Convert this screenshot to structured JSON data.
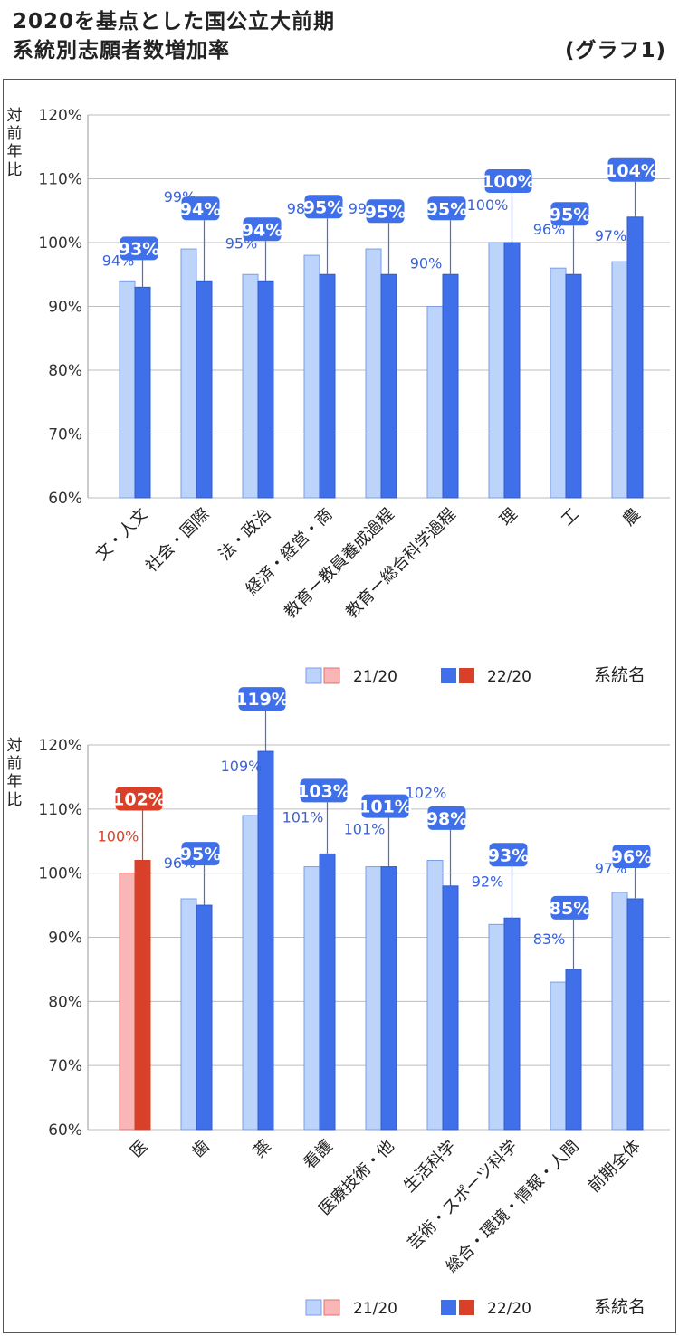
{
  "header": {
    "title_line1": "2020を基点とした国公立大前期",
    "title_line2": "系統別志願者数増加率",
    "graph_label": "(グラフ1)"
  },
  "colors": {
    "light_blue": "#bcd3fa",
    "light_blue_stroke": "#7a9ee8",
    "blue": "#3f6fe9",
    "light_red": "#f8b6b6",
    "light_red_stroke": "#e07070",
    "red": "#d9402a",
    "label_blue": "#3a63d8",
    "label_red": "#d9402a",
    "grid": "#bdbdbd"
  },
  "chart_data": [
    {
      "type": "bar",
      "ylabel": "対前年比",
      "xlabel": "系統名",
      "ylim": [
        60,
        120
      ],
      "yticks": [
        "60%",
        "70%",
        "80%",
        "90%",
        "100%",
        "110%",
        "120%"
      ],
      "categories": [
        "文・人文",
        "社会・国際",
        "法・政治",
        "経済・経営・商",
        "教育ー教員養成過程",
        "教育ー総合科学過程",
        "理",
        "工",
        "農"
      ],
      "series": [
        {
          "name": "21/20",
          "values": [
            94,
            99,
            95,
            98,
            99,
            90,
            100,
            96,
            97
          ],
          "labels": [
            "94%",
            "99%",
            "95%",
            "98%",
            "99%",
            "90%",
            "100%",
            "96%",
            "97%"
          ]
        },
        {
          "name": "22/20",
          "values": [
            93,
            94,
            94,
            95,
            95,
            95,
            100,
            95,
            104
          ],
          "labels": [
            "93%",
            "94%",
            "94%",
            "95%",
            "95%",
            "95%",
            "100%",
            "95%",
            "104%"
          ]
        }
      ],
      "highlight_index": -1,
      "legend": [
        "21/20",
        "22/20"
      ]
    },
    {
      "type": "bar",
      "ylabel": "対前年比",
      "xlabel": "系統名",
      "ylim": [
        60,
        120
      ],
      "yticks": [
        "60%",
        "70%",
        "80%",
        "90%",
        "100%",
        "110%",
        "120%"
      ],
      "categories": [
        "医",
        "歯",
        "薬",
        "看護",
        "医療技術・他",
        "生活科学",
        "芸術・スポーツ科学",
        "総合・環境・情報・人間",
        "前期全体"
      ],
      "series": [
        {
          "name": "21/20",
          "values": [
            100,
            96,
            109,
            101,
            101,
            102,
            92,
            83,
            97
          ],
          "labels": [
            "100%",
            "96%",
            "109%",
            "101%",
            "101%",
            "102%",
            "92%",
            "83%",
            "97%"
          ]
        },
        {
          "name": "22/20",
          "values": [
            102,
            95,
            119,
            103,
            101,
            98,
            93,
            85,
            96
          ],
          "labels": [
            "102%",
            "95%",
            "119%",
            "103%",
            "101%",
            "98%",
            "93%",
            "85%",
            "96%"
          ]
        }
      ],
      "highlight_index": 0,
      "legend": [
        "21/20",
        "22/20"
      ]
    }
  ]
}
